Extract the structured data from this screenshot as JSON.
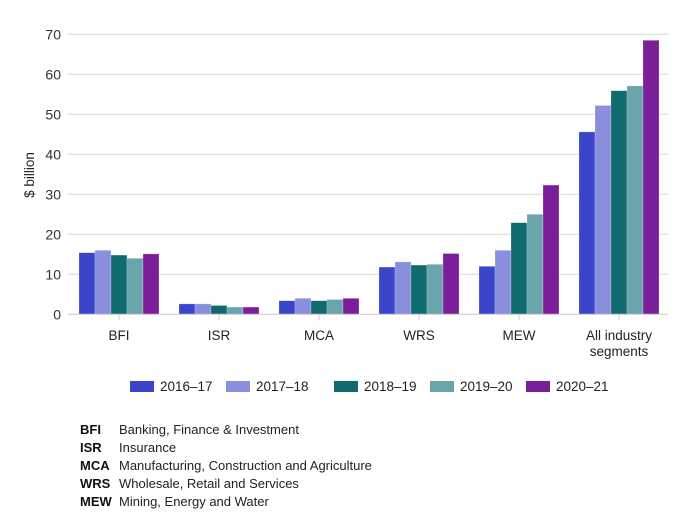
{
  "chart_data": {
    "type": "bar",
    "title": "",
    "xlabel": "",
    "ylabel": "$ billion",
    "ylim": [
      0,
      70
    ],
    "yticks": [
      0,
      10,
      20,
      30,
      40,
      50,
      60,
      70
    ],
    "grid": true,
    "legend_position": "bottom",
    "categories": [
      "BFI",
      "ISR",
      "MCA",
      "WRS",
      "MEW",
      "All industry segments"
    ],
    "category_label_lines": [
      [
        "BFI"
      ],
      [
        "ISR"
      ],
      [
        "MCA"
      ],
      [
        "WRS"
      ],
      [
        "MEW"
      ],
      [
        "All industry",
        "segments"
      ]
    ],
    "series": [
      {
        "name": "2016–17",
        "color": "#3b45c9",
        "values": [
          15.4,
          2.6,
          3.4,
          11.8,
          12.0,
          45.6
        ]
      },
      {
        "name": "2017–18",
        "color": "#8a8fdd",
        "values": [
          16.0,
          2.6,
          4.0,
          13.1,
          16.0,
          52.2
        ]
      },
      {
        "name": "2018–19",
        "color": "#0f6b70",
        "values": [
          14.8,
          2.2,
          3.4,
          12.3,
          22.9,
          55.9
        ]
      },
      {
        "name": "2019–20",
        "color": "#6aa5ab",
        "values": [
          14.0,
          1.8,
          3.7,
          12.5,
          25.0,
          57.1
        ]
      },
      {
        "name": "2020–21",
        "color": "#7a1f99",
        "values": [
          15.1,
          1.8,
          4.0,
          15.2,
          32.3,
          68.5
        ]
      }
    ]
  },
  "glossary": [
    {
      "abbr": "BFI",
      "desc": "Banking, Finance & Investment"
    },
    {
      "abbr": "ISR",
      "desc": "Insurance"
    },
    {
      "abbr": "MCA",
      "desc": "Manufacturing, Construction and Agriculture"
    },
    {
      "abbr": "WRS",
      "desc": "Wholesale, Retail and Services"
    },
    {
      "abbr": "MEW",
      "desc": "Mining, Energy and Water"
    }
  ]
}
